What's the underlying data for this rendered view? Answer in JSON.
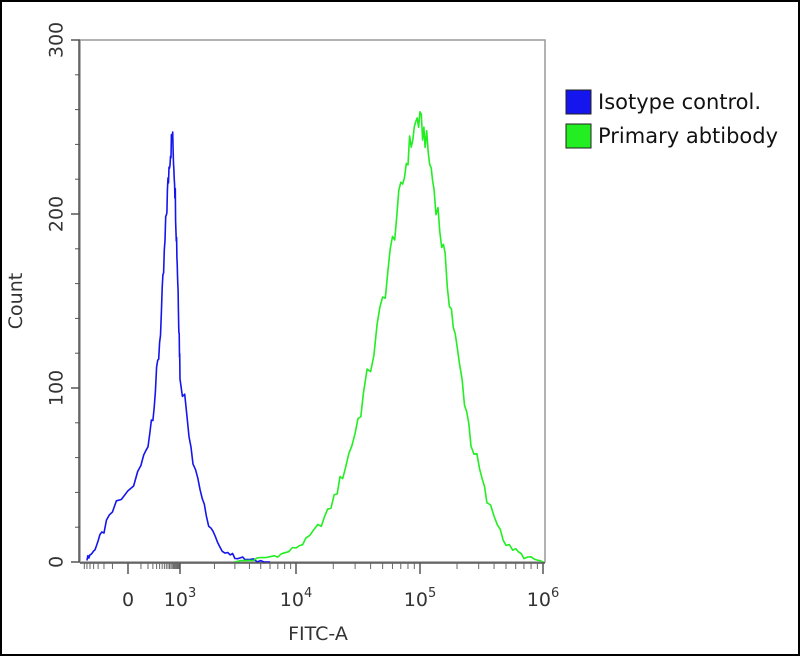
{
  "chart_data": {
    "type": "line",
    "title": "",
    "xlabel": "FITC-A",
    "ylabel": "Count",
    "x_scale": "biexponential",
    "x_tick_labels": [
      "0",
      "10³",
      "10⁴",
      "10⁵",
      "10⁶"
    ],
    "x_ticks": [
      {
        "value": 0,
        "base": "0",
        "exp": ""
      },
      {
        "value": 1000,
        "base": "10",
        "exp": "3"
      },
      {
        "value": 10000,
        "base": "10",
        "exp": "4"
      },
      {
        "value": 100000,
        "base": "10",
        "exp": "5"
      },
      {
        "value": 1000000,
        "base": "10",
        "exp": "6"
      }
    ],
    "y_ticks": [
      "0",
      "100",
      "200",
      "300"
    ],
    "ylim": [
      0,
      300
    ],
    "grid": false,
    "legend_position": "right",
    "series": [
      {
        "name": "Isotype control.",
        "color": "#1515ee",
        "x": [
          -300,
          -200,
          -100,
          0,
          100,
          200,
          300,
          400,
          500,
          600,
          700,
          800,
          900,
          1000,
          1300,
          1700,
          2200,
          3000,
          4000,
          6000
        ],
        "y": [
          2,
          6,
          18,
          40,
          70,
          105,
          150,
          200,
          232,
          245,
          222,
          185,
          150,
          110,
          60,
          25,
          8,
          3,
          1,
          0
        ]
      },
      {
        "name": "Primary abtibody",
        "color": "#22ee22",
        "x": [
          3000,
          5000,
          8000,
          12000,
          18000,
          25000,
          35000,
          50000,
          65000,
          80000,
          95000,
          110000,
          130000,
          160000,
          200000,
          260000,
          350000,
          500000,
          700000,
          1000000
        ],
        "y": [
          0,
          2,
          5,
          12,
          28,
          55,
          95,
          150,
          200,
          235,
          255,
          245,
          215,
          170,
          120,
          70,
          35,
          10,
          3,
          0
        ]
      }
    ]
  }
}
